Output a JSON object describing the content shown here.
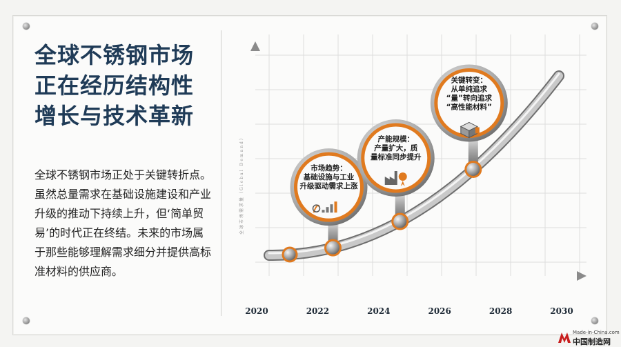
{
  "title": "全球不锈钢市场正在经历结构性增长与技术革新",
  "description": "全球不锈钢市场正处于关键转折点。虽然总量需求在基础设施建设和产业升级的推动下持续上升，但‘简单贸易’的时代正在终结。未来的市场属于那些能够理解需求细分并提供高标准材料的供应商。",
  "chart": {
    "y_axis_label": "全球市场需求量（Global Demand）",
    "x_ticks": [
      "2020",
      "2022",
      "2024",
      "2026",
      "2028",
      "2030"
    ],
    "milestones": [
      {
        "year": 2022.5,
        "lines": [
          "市场趋势：",
          "基础设施与工业",
          "升级驱动需求上涨"
        ],
        "icon": "chart-up-icon"
      },
      {
        "year": 2024.7,
        "lines": [
          "产能规模：",
          "产量扩大，质",
          "量标准同步提升"
        ],
        "icon": "factory-icon"
      },
      {
        "year": 2027.1,
        "lines": [
          "关键转变：",
          "从单纯追求",
          "“量”转向追求",
          "“高性能材料”"
        ],
        "icon": "steel-block-icon"
      }
    ]
  },
  "logo": {
    "small": "Made-in-China.com",
    "big": "中国制造网"
  },
  "colors": {
    "title": "#1f3b57",
    "accent": "#e07a1f"
  }
}
